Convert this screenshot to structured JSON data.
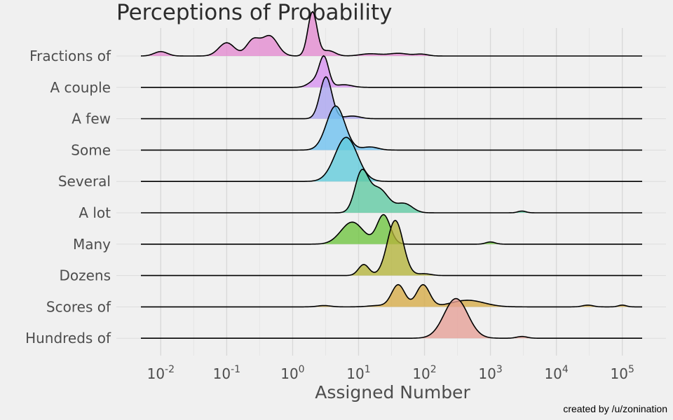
{
  "chart_data": {
    "type": "ridgeline",
    "title": "Perceptions of Probability",
    "xlabel": "Assigned Number",
    "ylabel": "",
    "x_scale": "log10",
    "xlim": [
      0.005,
      200000
    ],
    "x_ticks": [
      {
        "base": "10",
        "exp": "-2",
        "value": 0.01
      },
      {
        "base": "10",
        "exp": "-1",
        "value": 0.1
      },
      {
        "base": "10",
        "exp": "0",
        "value": 1
      },
      {
        "base": "10",
        "exp": "1",
        "value": 10
      },
      {
        "base": "10",
        "exp": "2",
        "value": 100
      },
      {
        "base": "10",
        "exp": "3",
        "value": 1000
      },
      {
        "base": "10",
        "exp": "4",
        "value": 10000
      },
      {
        "base": "10",
        "exp": "5",
        "value": 100000
      }
    ],
    "grid": true,
    "series": [
      {
        "name": "Fractions of",
        "color": "#e389cf",
        "peaks": [
          [
            0.01,
            0.1,
            0.1
          ],
          [
            0.1,
            0.3,
            0.12
          ],
          [
            0.25,
            0.35,
            0.1
          ],
          [
            0.45,
            0.45,
            0.12
          ],
          [
            2,
            1.0,
            0.07
          ],
          [
            3.5,
            0.12,
            0.1
          ],
          [
            15,
            0.05,
            0.15
          ],
          [
            40,
            0.06,
            0.15
          ],
          [
            90,
            0.04,
            0.1
          ]
        ]
      },
      {
        "name": "A couple",
        "color": "#d68ff0",
        "peaks": [
          [
            2.2,
            0.15,
            0.1
          ],
          [
            3.0,
            0.65,
            0.07
          ],
          [
            6.0,
            0.06,
            0.12
          ]
        ]
      },
      {
        "name": "A few",
        "color": "#a9a3f0",
        "peaks": [
          [
            3.2,
            0.95,
            0.09
          ],
          [
            8.0,
            0.06,
            0.12
          ]
        ]
      },
      {
        "name": "Some",
        "color": "#6cc0f0",
        "peaks": [
          [
            4.5,
            1.0,
            0.14
          ],
          [
            15.0,
            0.07,
            0.12
          ]
        ]
      },
      {
        "name": "Several",
        "color": "#5fcadb",
        "peaks": [
          [
            6.5,
            1.0,
            0.17
          ]
        ]
      },
      {
        "name": "A lot",
        "color": "#5ec9a2",
        "peaks": [
          [
            11.0,
            0.85,
            0.1
          ],
          [
            20.0,
            0.55,
            0.15
          ],
          [
            50.0,
            0.2,
            0.12
          ],
          [
            3000.0,
            0.04,
            0.06
          ]
        ]
      },
      {
        "name": "Many",
        "color": "#6ec43f",
        "peaks": [
          [
            8.0,
            0.5,
            0.17
          ],
          [
            24.0,
            0.66,
            0.1
          ],
          [
            1000.0,
            0.05,
            0.07
          ]
        ]
      },
      {
        "name": "Dozens",
        "color": "#b3b33a",
        "peaks": [
          [
            12.0,
            0.25,
            0.08
          ],
          [
            36.0,
            1.25,
            0.12
          ],
          [
            100.0,
            0.04,
            0.1
          ]
        ]
      },
      {
        "name": "Scores of",
        "color": "#d6aa45",
        "peaks": [
          [
            40.0,
            0.5,
            0.1
          ],
          [
            95.0,
            0.5,
            0.1
          ],
          [
            450.0,
            0.15,
            0.25
          ],
          [
            3.0,
            0.03,
            0.1
          ],
          [
            20.0,
            0.03,
            0.15
          ],
          [
            30000.0,
            0.04,
            0.08
          ],
          [
            100000.0,
            0.04,
            0.06
          ]
        ]
      },
      {
        "name": "Hundreds of",
        "color": "#e69f96",
        "peaks": [
          [
            300.0,
            0.9,
            0.18
          ],
          [
            3000.0,
            0.04,
            0.08
          ]
        ]
      }
    ]
  },
  "footer": {
    "credit": "created by /u/zonination"
  }
}
